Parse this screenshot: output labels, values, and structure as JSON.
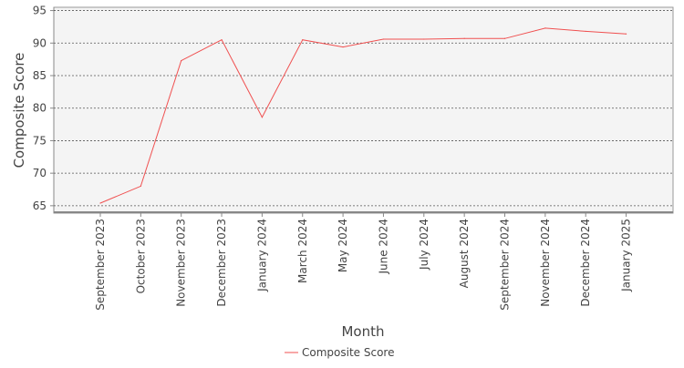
{
  "chart_data": {
    "type": "line",
    "title": "",
    "xlabel": "Month",
    "ylabel": "Composite Score",
    "categories": [
      "September 2023",
      "October 2023",
      "November 2023",
      "December 2023",
      "January 2024",
      "March 2024",
      "May 2024",
      "June 2024",
      "July 2024",
      "August 2024",
      "September 2024",
      "November 2024",
      "December 2024",
      "January 2025"
    ],
    "series": [
      {
        "name": "Composite Score",
        "color": "#f05050",
        "values": [
          65.4,
          68.0,
          87.3,
          90.5,
          78.6,
          90.5,
          89.4,
          90.6,
          90.6,
          90.7,
          90.7,
          92.3,
          91.8,
          91.4
        ]
      }
    ],
    "ylim": [
      64,
      95.5
    ],
    "yticks": [
      65,
      70,
      75,
      80,
      85,
      90,
      95
    ],
    "grid": true,
    "legend_position": "bottom-center",
    "colors": {
      "plot_background": "#f4f4f4",
      "grid": "#555555",
      "axis": "#888888",
      "text": "#444444"
    }
  }
}
